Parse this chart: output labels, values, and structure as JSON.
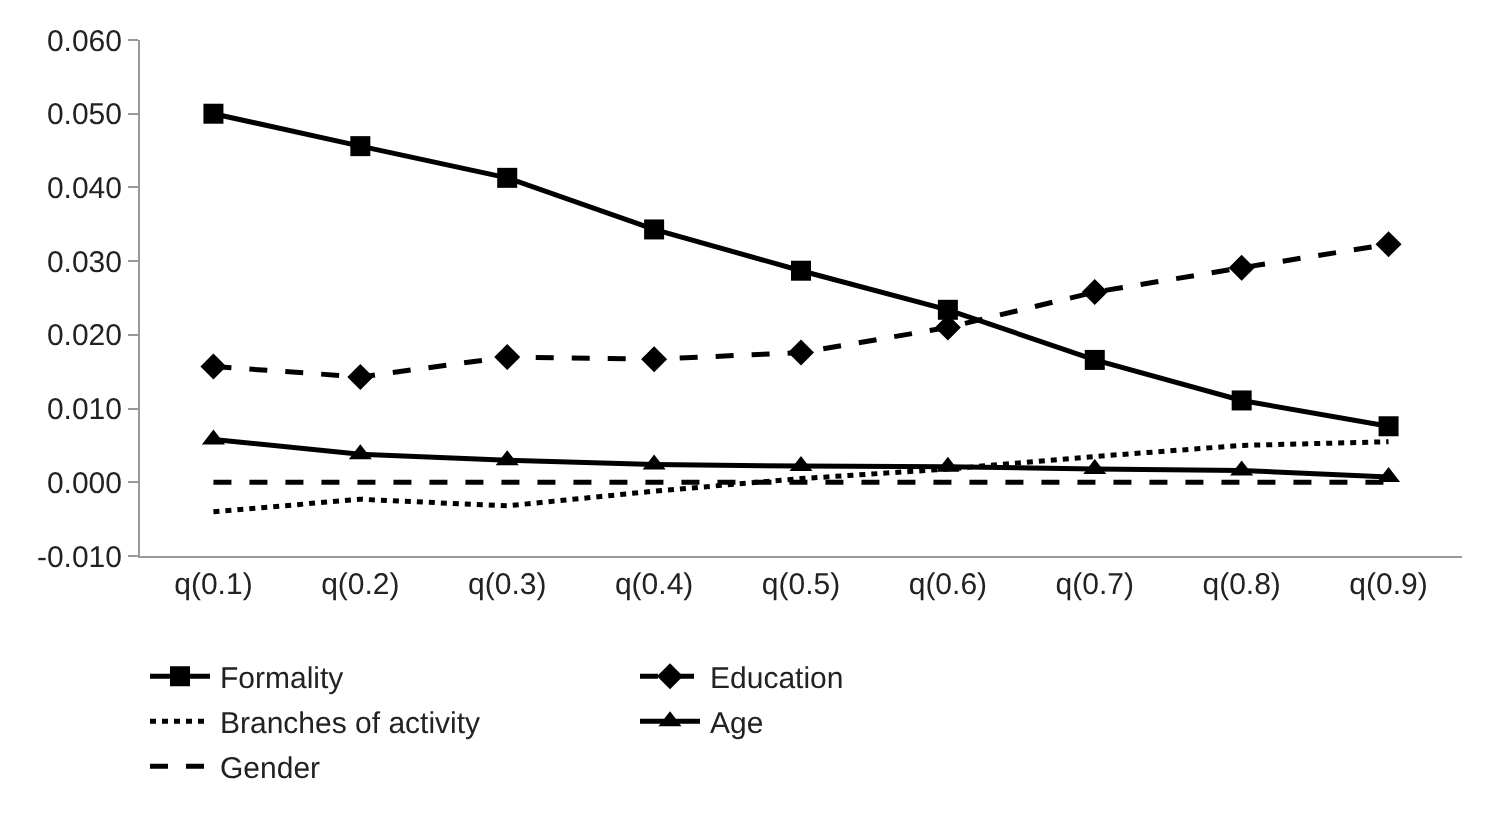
{
  "chart_data": {
    "type": "line",
    "categories": [
      "q(0.1)",
      "q(0.2)",
      "q(0.3)",
      "q(0.4)",
      "q(0.5)",
      "q(0.6)",
      "q(0.7)",
      "q(0.8)",
      "q(0.9)"
    ],
    "series": [
      {
        "name": "Formality",
        "color": "#000000",
        "marker": "square",
        "line_style": "solid",
        "values": [
          0.05,
          0.0456,
          0.0413,
          0.0343,
          0.0287,
          0.0234,
          0.0166,
          0.0111,
          0.0076
        ]
      },
      {
        "name": "Education",
        "color": "#000000",
        "marker": "diamond",
        "line_style": "dashed",
        "values": [
          0.0157,
          0.0143,
          0.017,
          0.0167,
          0.0176,
          0.021,
          0.0258,
          0.0291,
          0.0323
        ]
      },
      {
        "name": "Branches of activity",
        "color": "#000000",
        "marker": "none",
        "line_style": "dotted",
        "values": [
          -0.004,
          -0.0023,
          -0.0032,
          -0.0012,
          0.0005,
          0.0018,
          0.0035,
          0.005,
          0.0055
        ]
      },
      {
        "name": "Age",
        "color": "#000000",
        "marker": "triangle",
        "line_style": "solid",
        "values": [
          0.0058,
          0.0038,
          0.003,
          0.0024,
          0.0022,
          0.0021,
          0.0018,
          0.0016,
          0.0007
        ]
      },
      {
        "name": "Gender",
        "color": "#000000",
        "marker": "none",
        "line_style": "dashed",
        "values": [
          0,
          0,
          0,
          0,
          0,
          0,
          0,
          0,
          0
        ]
      }
    ],
    "ylim": [
      -0.01,
      0.06
    ],
    "yticks": [
      {
        "value": -0.01,
        "label": "-0.010"
      },
      {
        "value": 0,
        "label": "0.000"
      },
      {
        "value": 0.01,
        "label": "0.010"
      },
      {
        "value": 0.02,
        "label": "0.020"
      },
      {
        "value": 0.03,
        "label": "0.030"
      },
      {
        "value": 0.04,
        "label": "0.040"
      },
      {
        "value": 0.05,
        "label": "0.050"
      },
      {
        "value": 0.06,
        "label": "0.060"
      }
    ],
    "legend": "bottom"
  }
}
